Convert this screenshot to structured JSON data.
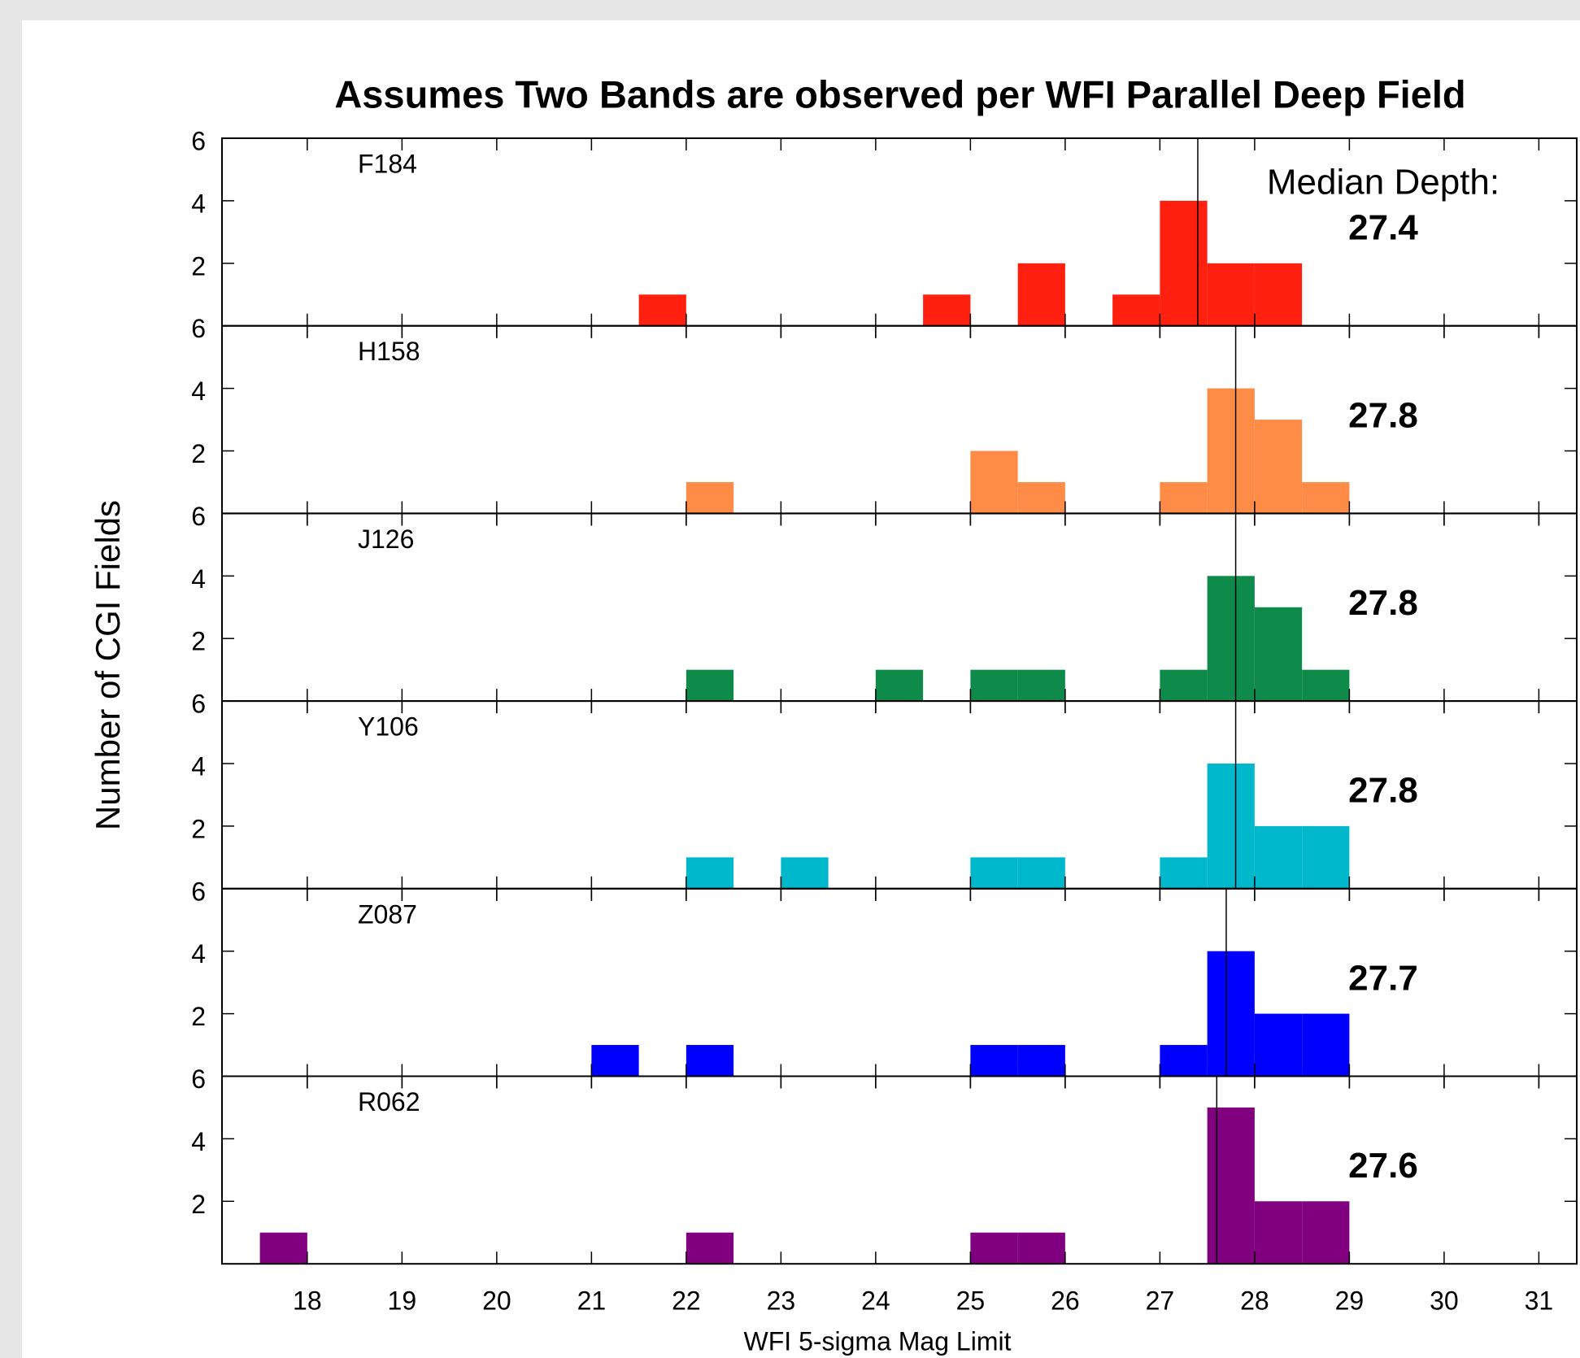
{
  "title": "Assumes Two Bands are observed per WFI Parallel Deep Field",
  "ylabel": "Number of CGI Fields",
  "xlabel": "WFI 5-sigma Mag Limit",
  "annotation": "Median Depth:",
  "chart_data": [
    {
      "type": "histogram",
      "label": "F184",
      "color": "#ff2010",
      "median": 27.4,
      "bins": [
        17.5,
        18,
        18.5,
        19,
        19.5,
        20,
        20.5,
        21,
        21.5,
        22,
        22.5,
        23,
        23.5,
        24,
        24.5,
        25,
        25.5,
        26,
        26.5,
        27,
        27.5,
        28,
        28.5,
        29
      ],
      "counts": [
        0,
        0,
        0,
        0,
        0,
        0,
        0,
        0,
        1,
        0,
        0,
        0,
        0,
        0,
        1,
        0,
        2,
        0,
        1,
        4,
        2,
        2,
        0
      ],
      "xlim": [
        17.1,
        31.4
      ],
      "xticks": [
        18,
        19,
        20,
        21,
        22,
        23,
        24,
        25,
        26,
        27,
        28,
        29,
        30,
        31
      ],
      "ylim": [
        0,
        6
      ],
      "yticks": [
        2,
        4,
        6
      ]
    },
    {
      "type": "histogram",
      "label": "H158",
      "color": "#ff8c46",
      "median": 27.8,
      "bins": [
        17.5,
        18,
        18.5,
        19,
        19.5,
        20,
        20.5,
        21,
        21.5,
        22,
        22.5,
        23,
        23.5,
        24,
        24.5,
        25,
        25.5,
        26,
        26.5,
        27,
        27.5,
        28,
        28.5,
        29
      ],
      "counts": [
        0,
        0,
        0,
        0,
        0,
        0,
        0,
        0,
        0,
        1,
        0,
        0,
        0,
        0,
        0,
        2,
        1,
        0,
        0,
        1,
        4,
        3,
        1
      ],
      "xlim": [
        17.1,
        31.4
      ],
      "xticks": [
        18,
        19,
        20,
        21,
        22,
        23,
        24,
        25,
        26,
        27,
        28,
        29,
        30,
        31
      ],
      "ylim": [
        0,
        6
      ],
      "yticks": [
        2,
        4,
        6
      ]
    },
    {
      "type": "histogram",
      "label": "J126",
      "color": "#0e8a4a",
      "median": 27.8,
      "bins": [
        17.5,
        18,
        18.5,
        19,
        19.5,
        20,
        20.5,
        21,
        21.5,
        22,
        22.5,
        23,
        23.5,
        24,
        24.5,
        25,
        25.5,
        26,
        26.5,
        27,
        27.5,
        28,
        28.5,
        29
      ],
      "counts": [
        0,
        0,
        0,
        0,
        0,
        0,
        0,
        0,
        0,
        1,
        0,
        0,
        0,
        1,
        0,
        1,
        1,
        0,
        0,
        1,
        4,
        3,
        1
      ],
      "xlim": [
        17.1,
        31.4
      ],
      "xticks": [
        18,
        19,
        20,
        21,
        22,
        23,
        24,
        25,
        26,
        27,
        28,
        29,
        30,
        31
      ],
      "ylim": [
        0,
        6
      ],
      "yticks": [
        2,
        4,
        6
      ]
    },
    {
      "type": "histogram",
      "label": "Y106",
      "color": "#00b8cc",
      "median": 27.8,
      "bins": [
        17.5,
        18,
        18.5,
        19,
        19.5,
        20,
        20.5,
        21,
        21.5,
        22,
        22.5,
        23,
        23.5,
        24,
        24.5,
        25,
        25.5,
        26,
        26.5,
        27,
        27.5,
        28,
        28.5,
        29
      ],
      "counts": [
        0,
        0,
        0,
        0,
        0,
        0,
        0,
        0,
        0,
        1,
        0,
        1,
        0,
        0,
        0,
        1,
        1,
        0,
        0,
        1,
        4,
        2,
        2
      ],
      "xlim": [
        17.1,
        31.4
      ],
      "xticks": [
        18,
        19,
        20,
        21,
        22,
        23,
        24,
        25,
        26,
        27,
        28,
        29,
        30,
        31
      ],
      "ylim": [
        0,
        6
      ],
      "yticks": [
        2,
        4,
        6
      ]
    },
    {
      "type": "histogram",
      "label": "Z087",
      "color": "#0000ff",
      "median": 27.7,
      "bins": [
        17.5,
        18,
        18.5,
        19,
        19.5,
        20,
        20.5,
        21,
        21.5,
        22,
        22.5,
        23,
        23.5,
        24,
        24.5,
        25,
        25.5,
        26,
        26.5,
        27,
        27.5,
        28,
        28.5,
        29
      ],
      "counts": [
        0,
        0,
        0,
        0,
        0,
        0,
        0,
        1,
        0,
        1,
        0,
        0,
        0,
        0,
        0,
        1,
        1,
        0,
        0,
        1,
        4,
        2,
        2
      ],
      "xlim": [
        17.1,
        31.4
      ],
      "xticks": [
        18,
        19,
        20,
        21,
        22,
        23,
        24,
        25,
        26,
        27,
        28,
        29,
        30,
        31
      ],
      "ylim": [
        0,
        6
      ],
      "yticks": [
        2,
        4,
        6
      ]
    },
    {
      "type": "histogram",
      "label": "R062",
      "color": "#800080",
      "median": 27.6,
      "bins": [
        17.5,
        18,
        18.5,
        19,
        19.5,
        20,
        20.5,
        21,
        21.5,
        22,
        22.5,
        23,
        23.5,
        24,
        24.5,
        25,
        25.5,
        26,
        26.5,
        27,
        27.5,
        28,
        28.5,
        29
      ],
      "counts": [
        1,
        0,
        0,
        0,
        0,
        0,
        0,
        0,
        0,
        1,
        0,
        0,
        0,
        0,
        0,
        1,
        1,
        0,
        0,
        0,
        5,
        2,
        2
      ],
      "xlim": [
        17.1,
        31.4
      ],
      "xticks": [
        18,
        19,
        20,
        21,
        22,
        23,
        24,
        25,
        26,
        27,
        28,
        29,
        30,
        31
      ],
      "ylim": [
        0,
        6
      ],
      "yticks": [
        2,
        4,
        6
      ]
    }
  ]
}
